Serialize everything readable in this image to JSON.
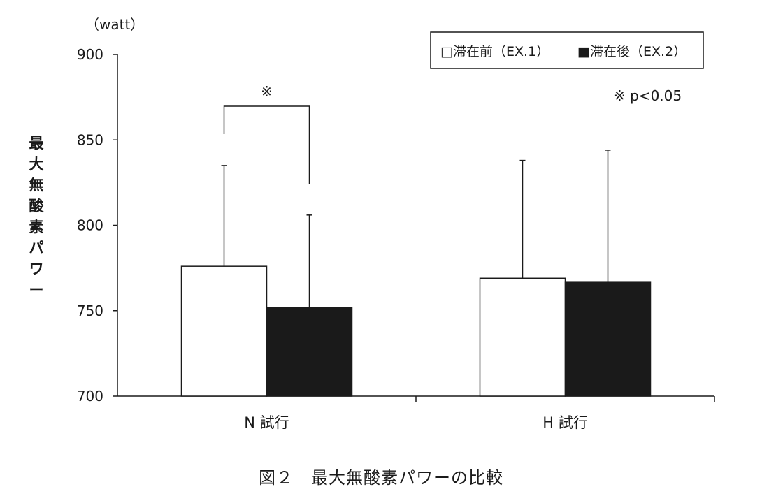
{
  "chart_data": {
    "type": "bar",
    "ylabel": "最大無酸素パワー",
    "y_unit": "（watt）",
    "ylim": [
      700,
      900
    ],
    "yticks": [
      700,
      750,
      800,
      850,
      900
    ],
    "categories": [
      "N 試行",
      "H 試行"
    ],
    "series": [
      {
        "name": "滞在前（EX.1）",
        "legend_label": "□滞在前（EX.1）",
        "color": "#ffffff",
        "values": [
          776,
          769
        ],
        "error_upper": [
          835,
          838
        ]
      },
      {
        "name": "滞在後（EX.2）",
        "legend_label": "■滞在後（EX.2）",
        "color": "#1a1a1a",
        "values": [
          752,
          767
        ],
        "error_upper": [
          806,
          844
        ]
      }
    ],
    "legend_position": "top-right",
    "annotations": {
      "significance_mark": "※",
      "significance_note": "※ p<0.05"
    }
  },
  "caption": "図２　最大無酸素パワーの比較"
}
